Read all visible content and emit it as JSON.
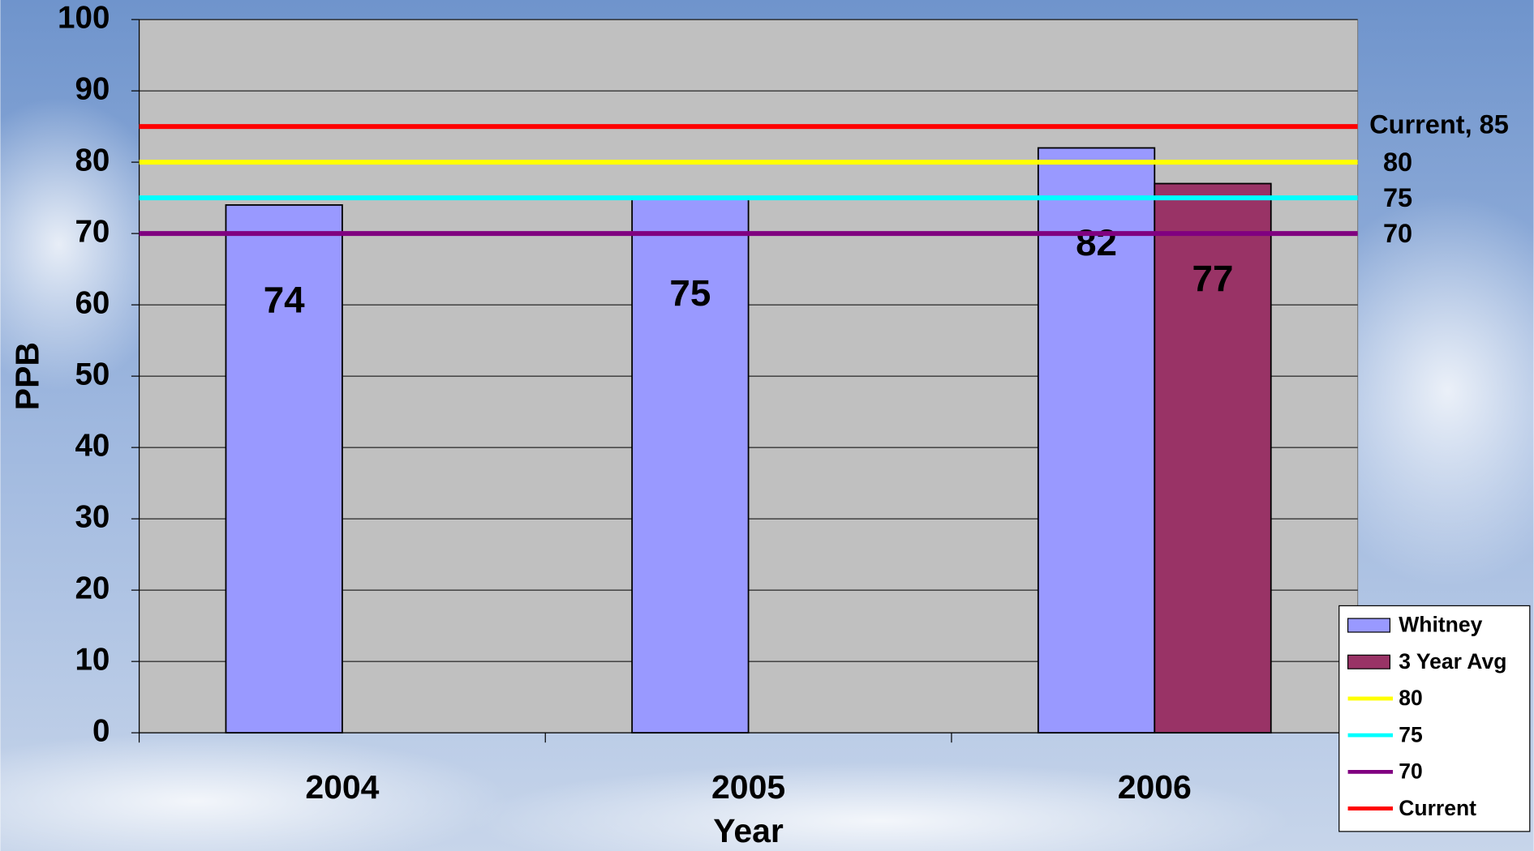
{
  "chart_data": {
    "type": "bar",
    "categories": [
      "2004",
      "2005",
      "2006"
    ],
    "series": [
      {
        "name": "Whitney",
        "color": "#9999ff",
        "values": [
          74,
          75,
          82
        ]
      },
      {
        "name": "3 Year Avg",
        "color": "#993366",
        "values": [
          null,
          null,
          77
        ]
      }
    ],
    "reference_lines": [
      {
        "name": "80",
        "value": 80,
        "color": "#ffff00"
      },
      {
        "name": "75",
        "value": 75,
        "color": "#00ffff"
      },
      {
        "name": "70",
        "value": 70,
        "color": "#800080"
      },
      {
        "name": "Current",
        "value": 85,
        "color": "#ff0000",
        "label": "Current, 85"
      }
    ],
    "xlabel": "Year",
    "ylabel": "PPB",
    "ylim": [
      0,
      100
    ],
    "yticks": [
      0,
      10,
      20,
      30,
      40,
      50,
      60,
      70,
      80,
      90,
      100
    ],
    "grid": true,
    "legend": "right"
  }
}
